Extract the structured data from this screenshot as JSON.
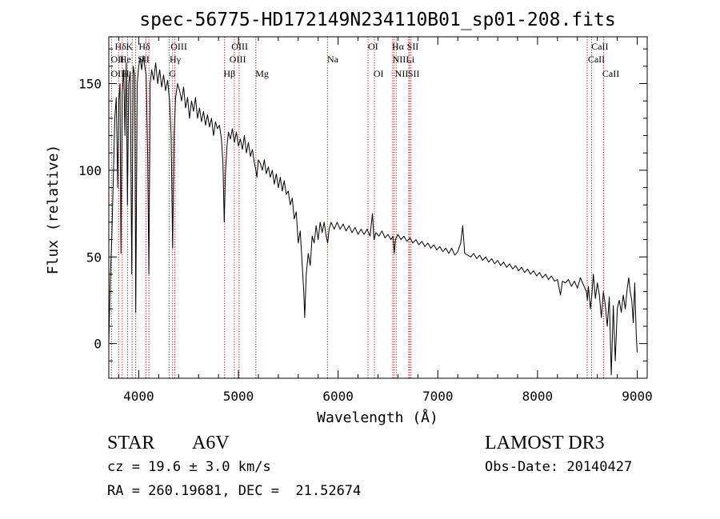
{
  "chart_data": {
    "type": "line",
    "title": "spec-56775-HD172149N234110B01_sp01-208.fits",
    "xlabel": "Wavelength (Å)",
    "ylabel": "Flux (relative)",
    "xlim": [
      3700,
      9100
    ],
    "ylim": [
      -20,
      177
    ],
    "x_ticks": [
      4000,
      5000,
      6000,
      7000,
      8000,
      9000
    ],
    "y_ticks": [
      0,
      50,
      100,
      150
    ],
    "grid": false,
    "series": [
      {
        "color": "#000000",
        "points": [
          [
            3700,
            0
          ],
          [
            3715,
            38
          ],
          [
            3730,
            60
          ],
          [
            3745,
            95
          ],
          [
            3760,
            130
          ],
          [
            3775,
            142
          ],
          [
            3790,
            90
          ],
          [
            3800,
            140
          ],
          [
            3812,
            150
          ],
          [
            3822,
            52
          ],
          [
            3835,
            145
          ],
          [
            3850,
            158
          ],
          [
            3862,
            120
          ],
          [
            3875,
            162
          ],
          [
            3887,
            80
          ],
          [
            3900,
            150
          ],
          [
            3915,
            157
          ],
          [
            3930,
            40
          ],
          [
            3945,
            160
          ],
          [
            3960,
            155
          ],
          [
            3970,
            18
          ],
          [
            3985,
            150
          ],
          [
            4000,
            160
          ],
          [
            4015,
            165
          ],
          [
            4030,
            158
          ],
          [
            4045,
            166
          ],
          [
            4060,
            160
          ],
          [
            4075,
            155
          ],
          [
            4090,
            108
          ],
          [
            4102,
            40
          ],
          [
            4115,
            150
          ],
          [
            4130,
            158
          ],
          [
            4150,
            152
          ],
          [
            4170,
            162
          ],
          [
            4190,
            150
          ],
          [
            4210,
            158
          ],
          [
            4230,
            148
          ],
          [
            4250,
            155
          ],
          [
            4270,
            146
          ],
          [
            4290,
            152
          ],
          [
            4310,
            140
          ],
          [
            4325,
            120
          ],
          [
            4340,
            55
          ],
          [
            4355,
            120
          ],
          [
            4370,
            142
          ],
          [
            4390,
            150
          ],
          [
            4410,
            146
          ],
          [
            4430,
            140
          ],
          [
            4450,
            148
          ],
          [
            4470,
            136
          ],
          [
            4490,
            142
          ],
          [
            4510,
            130
          ],
          [
            4530,
            140
          ],
          [
            4550,
            134
          ],
          [
            4570,
            142
          ],
          [
            4590,
            130
          ],
          [
            4610,
            136
          ],
          [
            4630,
            128
          ],
          [
            4650,
            134
          ],
          [
            4670,
            126
          ],
          [
            4690,
            132
          ],
          [
            4710,
            125
          ],
          [
            4730,
            130
          ],
          [
            4750,
            120
          ],
          [
            4770,
            128
          ],
          [
            4790,
            124
          ],
          [
            4810,
            126
          ],
          [
            4830,
            118
          ],
          [
            4845,
            104
          ],
          [
            4858,
            70
          ],
          [
            4870,
            98
          ],
          [
            4885,
            114
          ],
          [
            4900,
            122
          ],
          [
            4920,
            118
          ],
          [
            4940,
            124
          ],
          [
            4960,
            116
          ],
          [
            4980,
            122
          ],
          [
            5000,
            114
          ],
          [
            5020,
            118
          ],
          [
            5040,
            112
          ],
          [
            5060,
            120
          ],
          [
            5080,
            110
          ],
          [
            5100,
            116
          ],
          [
            5120,
            108
          ],
          [
            5140,
            112
          ],
          [
            5160,
            104
          ],
          [
            5175,
            100
          ],
          [
            5185,
            96
          ],
          [
            5200,
            106
          ],
          [
            5220,
            104
          ],
          [
            5240,
            100
          ],
          [
            5260,
            106
          ],
          [
            5280,
            98
          ],
          [
            5300,
            102
          ],
          [
            5320,
            96
          ],
          [
            5340,
            100
          ],
          [
            5360,
            92
          ],
          [
            5380,
            98
          ],
          [
            5400,
            90
          ],
          [
            5420,
            96
          ],
          [
            5440,
            88
          ],
          [
            5460,
            94
          ],
          [
            5480,
            86
          ],
          [
            5500,
            88
          ],
          [
            5520,
            80
          ],
          [
            5540,
            84
          ],
          [
            5560,
            72
          ],
          [
            5580,
            76
          ],
          [
            5600,
            58
          ],
          [
            5620,
            65
          ],
          [
            5640,
            45
          ],
          [
            5655,
            30
          ],
          [
            5665,
            15
          ],
          [
            5680,
            40
          ],
          [
            5700,
            52
          ],
          [
            5720,
            45
          ],
          [
            5740,
            62
          ],
          [
            5760,
            58
          ],
          [
            5780,
            68
          ],
          [
            5800,
            60
          ],
          [
            5820,
            70
          ],
          [
            5840,
            64
          ],
          [
            5860,
            70
          ],
          [
            5880,
            62
          ],
          [
            5895,
            58
          ],
          [
            5910,
            66
          ],
          [
            5930,
            70
          ],
          [
            5960,
            66
          ],
          [
            5990,
            70
          ],
          [
            6020,
            66
          ],
          [
            6050,
            69
          ],
          [
            6080,
            65
          ],
          [
            6110,
            68
          ],
          [
            6140,
            64
          ],
          [
            6170,
            67
          ],
          [
            6200,
            63
          ],
          [
            6230,
            66
          ],
          [
            6260,
            63
          ],
          [
            6290,
            66
          ],
          [
            6320,
            62
          ],
          [
            6345,
            75
          ],
          [
            6360,
            60
          ],
          [
            6380,
            64
          ],
          [
            6410,
            62
          ],
          [
            6440,
            65
          ],
          [
            6470,
            61
          ],
          [
            6500,
            63
          ],
          [
            6530,
            60
          ],
          [
            6550,
            62
          ],
          [
            6563,
            52
          ],
          [
            6575,
            60
          ],
          [
            6600,
            63
          ],
          [
            6630,
            60
          ],
          [
            6660,
            62
          ],
          [
            6690,
            59
          ],
          [
            6720,
            61
          ],
          [
            6750,
            58
          ],
          [
            6780,
            60
          ],
          [
            6810,
            57
          ],
          [
            6840,
            59
          ],
          [
            6870,
            56
          ],
          [
            6900,
            58
          ],
          [
            6930,
            55
          ],
          [
            6960,
            57
          ],
          [
            6990,
            54
          ],
          [
            7020,
            56
          ],
          [
            7050,
            53
          ],
          [
            7080,
            55
          ],
          [
            7110,
            52
          ],
          [
            7140,
            55
          ],
          [
            7170,
            51
          ],
          [
            7200,
            53
          ],
          [
            7230,
            58
          ],
          [
            7250,
            68
          ],
          [
            7270,
            52
          ],
          [
            7300,
            51
          ],
          [
            7330,
            50
          ],
          [
            7360,
            52
          ],
          [
            7390,
            49
          ],
          [
            7420,
            51
          ],
          [
            7450,
            48
          ],
          [
            7480,
            50
          ],
          [
            7510,
            47
          ],
          [
            7540,
            49
          ],
          [
            7570,
            46
          ],
          [
            7600,
            48
          ],
          [
            7630,
            45
          ],
          [
            7660,
            47
          ],
          [
            7690,
            44
          ],
          [
            7720,
            46
          ],
          [
            7750,
            43
          ],
          [
            7780,
            45
          ],
          [
            7810,
            42
          ],
          [
            7840,
            44
          ],
          [
            7870,
            41
          ],
          [
            7900,
            43
          ],
          [
            7930,
            40
          ],
          [
            7960,
            42
          ],
          [
            7990,
            39
          ],
          [
            8020,
            41
          ],
          [
            8050,
            38
          ],
          [
            8080,
            40
          ],
          [
            8110,
            37
          ],
          [
            8140,
            39
          ],
          [
            8170,
            36
          ],
          [
            8200,
            37
          ],
          [
            8230,
            28
          ],
          [
            8250,
            36
          ],
          [
            8280,
            35
          ],
          [
            8310,
            37
          ],
          [
            8340,
            33
          ],
          [
            8370,
            36
          ],
          [
            8400,
            32
          ],
          [
            8430,
            38
          ],
          [
            8460,
            34
          ],
          [
            8490,
            30
          ],
          [
            8500,
            25
          ],
          [
            8510,
            33
          ],
          [
            8530,
            20
          ],
          [
            8545,
            28
          ],
          [
            8560,
            40
          ],
          [
            8580,
            26
          ],
          [
            8600,
            35
          ],
          [
            8620,
            28
          ],
          [
            8640,
            15
          ],
          [
            8660,
            30
          ],
          [
            8680,
            22
          ],
          [
            8700,
            10
          ],
          [
            8720,
            27
          ],
          [
            8740,
            -18
          ],
          [
            8760,
            22
          ],
          [
            8780,
            -10
          ],
          [
            8800,
            20
          ],
          [
            8820,
            25
          ],
          [
            8840,
            18
          ],
          [
            8860,
            28
          ],
          [
            8880,
            20
          ],
          [
            8900,
            32
          ],
          [
            8915,
            38
          ],
          [
            8930,
            30
          ],
          [
            8945,
            25
          ],
          [
            8960,
            12
          ],
          [
            8975,
            35
          ],
          [
            8990,
            5
          ],
          [
            9000,
            -5
          ]
        ]
      }
    ],
    "lines": [
      {
        "label": "Hδ",
        "x": 3760,
        "row": 0
      },
      {
        "label": "K",
        "x": 3872,
        "row": 0
      },
      {
        "label": "Hδ",
        "x": 4000,
        "row": 0
      },
      {
        "label": "OIII",
        "x": 4320,
        "row": 0
      },
      {
        "label": "OIII",
        "x": 4930,
        "row": 0
      },
      {
        "label": "OI",
        "x": 6300,
        "row": 0
      },
      {
        "label": "Hα",
        "x": 6540,
        "row": 0
      },
      {
        "label": "SII",
        "x": 6690,
        "row": 0
      },
      {
        "label": "CaII",
        "x": 8540,
        "row": 0
      },
      {
        "label": "OII",
        "x": 3720,
        "row": 1
      },
      {
        "label": "He",
        "x": 3810,
        "row": 1
      },
      {
        "label": "SII",
        "x": 3990,
        "row": 1
      },
      {
        "label": "Hγ",
        "x": 4310,
        "row": 1
      },
      {
        "label": "OIII",
        "x": 4910,
        "row": 1
      },
      {
        "label": "Na",
        "x": 5890,
        "row": 1
      },
      {
        "label": "NII",
        "x": 6545,
        "row": 1
      },
      {
        "label": "Li",
        "x": 6680,
        "row": 1
      },
      {
        "label": "CaII",
        "x": 8505,
        "row": 1
      },
      {
        "label": "OIII",
        "x": 3720,
        "row": 2
      },
      {
        "label": "H",
        "x": 3835,
        "row": 2
      },
      {
        "label": "G",
        "x": 4305,
        "row": 2
      },
      {
        "label": "Hβ",
        "x": 4850,
        "row": 2
      },
      {
        "label": "Mg",
        "x": 5170,
        "row": 2
      },
      {
        "label": "OI",
        "x": 6355,
        "row": 2
      },
      {
        "label": "NII",
        "x": 6570,
        "row": 2
      },
      {
        "label": "SII",
        "x": 6700,
        "row": 2
      },
      {
        "label": "CaII",
        "x": 8650,
        "row": 2
      }
    ],
    "line_positions": [
      3727,
      3798,
      3835,
      3889,
      3934,
      3970,
      4072,
      4102,
      4305,
      4340,
      4363,
      4861,
      4959,
      5007,
      5175,
      5893,
      6300,
      6364,
      6548,
      6563,
      6583,
      6708,
      6717,
      6731,
      8498,
      8542,
      8662
    ],
    "line_color": "#c00000"
  },
  "info": {
    "left": {
      "class": "STAR",
      "subclass": "A6V",
      "cz": "cz = 19.6 ± 3.0 km/s",
      "radec": "RA = 260.19681, DEC =  21.52674"
    },
    "right": {
      "survey": "LAMOST DR3",
      "obs_date": "Obs-Date: 20140427"
    }
  }
}
